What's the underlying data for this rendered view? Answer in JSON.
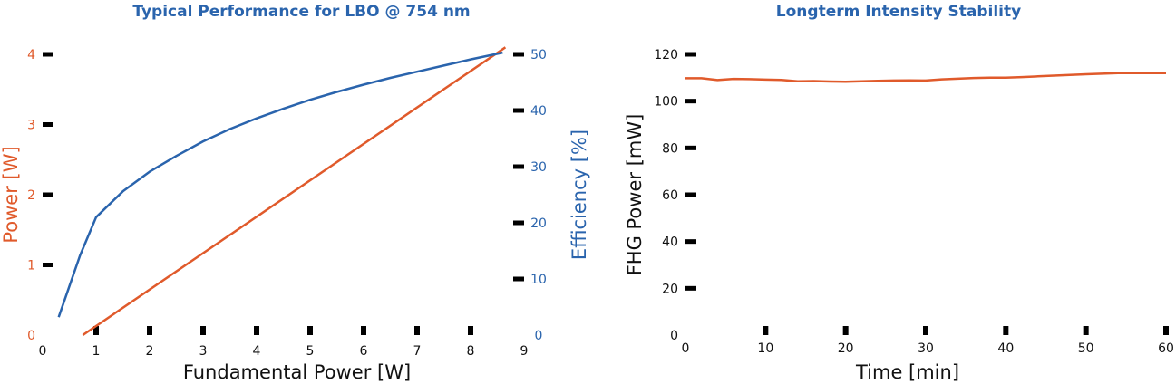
{
  "colors": {
    "orange": "#e05a2b",
    "blue": "#2a64ad",
    "text": "#111111",
    "axis": "#000000"
  },
  "chart_data": [
    {
      "type": "line",
      "title": "Typical Performance for LBO @ 754 nm",
      "xlabel": "Fundamental Power [W]",
      "ylabel_left": "Power [W]",
      "ylabel_right": "Efficiency [%]",
      "xlim": [
        0,
        9
      ],
      "ylim_left": [
        0,
        4
      ],
      "ylim_right": [
        0,
        50
      ],
      "x_ticks": [
        "0",
        "1",
        "2",
        "3",
        "4",
        "5",
        "6",
        "7",
        "8",
        "9"
      ],
      "y_left_ticks": [
        "0",
        "1",
        "2",
        "3",
        "4"
      ],
      "y_right_ticks": [
        "0",
        "10",
        "20",
        "30",
        "40",
        "50"
      ],
      "grid": false,
      "series": [
        {
          "axis": "left",
          "color": "#e05a2b",
          "x": [
            0.75,
            8.65
          ],
          "y": [
            0,
            4.1
          ]
        },
        {
          "axis": "right",
          "color": "#2a64ad",
          "x": [
            0.3,
            0.7,
            1.0,
            1.5,
            2.0,
            2.5,
            3.0,
            3.5,
            4.0,
            4.5,
            5.0,
            5.5,
            6.0,
            6.5,
            7.0,
            7.5,
            8.0,
            8.6
          ],
          "y": [
            3.2,
            14.2,
            21.0,
            25.6,
            29.1,
            31.9,
            34.5,
            36.7,
            38.6,
            40.3,
            41.9,
            43.3,
            44.6,
            45.8,
            46.9,
            48.0,
            49.1,
            50.3
          ]
        }
      ]
    },
    {
      "type": "line",
      "title": "Longterm Intensity Stability",
      "xlabel": "Time [min]",
      "ylabel": "FHG Power [mW]",
      "xlim": [
        0,
        60
      ],
      "ylim": [
        0,
        120
      ],
      "x_ticks": [
        "0",
        "10",
        "20",
        "30",
        "40",
        "50",
        "60"
      ],
      "y_ticks": [
        "0",
        "20",
        "40",
        "60",
        "80",
        "100",
        "120"
      ],
      "grid": false,
      "series": [
        {
          "color": "#e05a2b",
          "x": [
            0,
            2,
            4,
            6,
            8,
            10,
            12,
            14,
            16,
            18,
            20,
            22,
            24,
            26,
            28,
            30,
            32,
            34,
            36,
            38,
            40,
            42,
            44,
            46,
            48,
            50,
            52,
            54,
            56,
            58,
            60
          ],
          "y": [
            109.8,
            109.8,
            109.0,
            109.5,
            109.4,
            109.2,
            109.1,
            108.5,
            108.6,
            108.4,
            108.3,
            108.5,
            108.7,
            108.8,
            108.9,
            108.8,
            109.3,
            109.6,
            109.9,
            110.0,
            110.0,
            110.3,
            110.6,
            110.9,
            111.2,
            111.5,
            111.7,
            112.0,
            112.0,
            112.0,
            112.0
          ]
        }
      ]
    }
  ]
}
